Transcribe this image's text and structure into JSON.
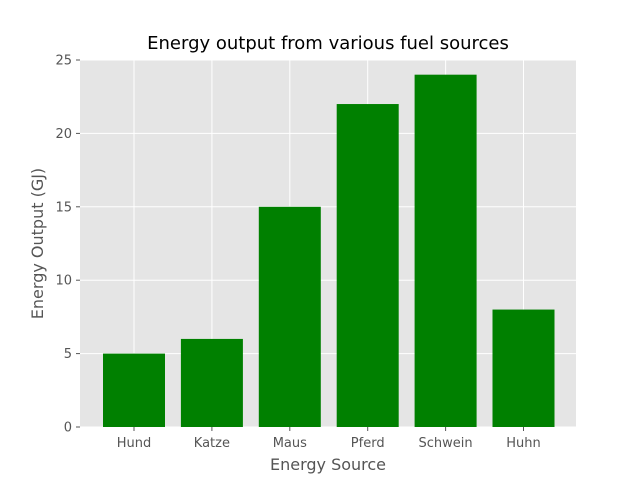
{
  "chart_data": {
    "type": "bar",
    "title": "Energy output from various fuel sources",
    "xlabel": "Energy Source",
    "ylabel": "Energy Output (GJ)",
    "categories": [
      "Hund",
      "Katze",
      "Maus",
      "Pferd",
      "Schwein",
      "Huhn"
    ],
    "values": [
      5,
      6,
      15,
      22,
      24,
      8
    ],
    "ylim": [
      0,
      25
    ],
    "yticks": [
      0,
      5,
      10,
      15,
      20,
      25
    ],
    "grid": true,
    "legend": "none",
    "colors": {
      "bar": "#008000",
      "plot_background": "#e5e5e5",
      "grid": "#ffffff",
      "text": "#555555",
      "title": "#000000"
    }
  }
}
